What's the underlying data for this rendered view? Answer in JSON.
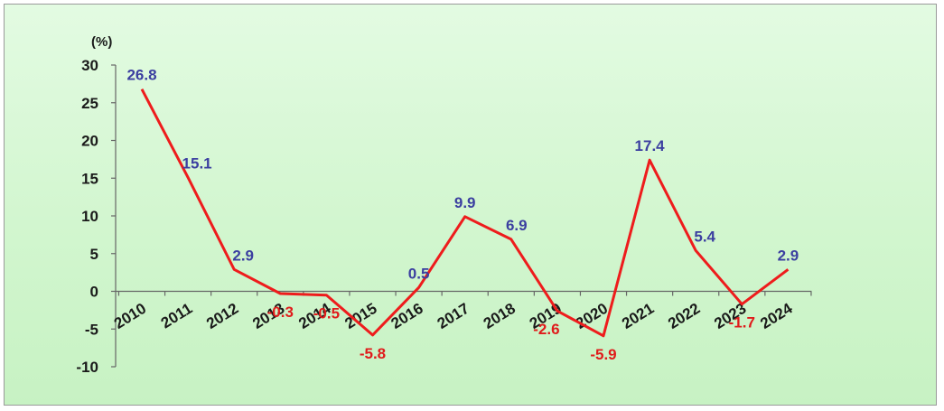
{
  "chart_data": {
    "type": "line",
    "unit_label": "(%)",
    "categories": [
      "2010",
      "2011",
      "2012",
      "2013",
      "2014",
      "2015",
      "2016",
      "2017",
      "2018",
      "2019",
      "2020",
      "2021",
      "2022",
      "2023",
      "2024"
    ],
    "values": [
      26.8,
      15.1,
      2.9,
      -0.3,
      -0.5,
      -5.8,
      0.5,
      9.9,
      6.9,
      -2.6,
      -5.9,
      17.4,
      5.4,
      -1.7,
      2.9
    ],
    "value_labels": [
      "26.8",
      "15.1",
      "2.9",
      "-0.3",
      "-0.5",
      "-5.8",
      "0.5",
      "9.9",
      "6.9",
      "-2.6",
      "-5.9",
      "17.4",
      "5.4",
      "-1.7",
      "2.9"
    ],
    "yticks": [
      30,
      25,
      20,
      15,
      10,
      5,
      0,
      -5,
      -10
    ],
    "ytick_labels": [
      "30",
      "25",
      "20",
      "15",
      "10",
      "5",
      "0",
      "-5",
      "-10"
    ],
    "ylim": [
      -10,
      30
    ],
    "grid": false,
    "legend": "none",
    "colors": {
      "line": "#ee1c1c",
      "positive_label": "#3b3fa0",
      "negative_label": "#e01b1b",
      "axis": "#666666",
      "background_top": "#e3fbe2",
      "background_bottom": "#c7f2c3"
    }
  }
}
